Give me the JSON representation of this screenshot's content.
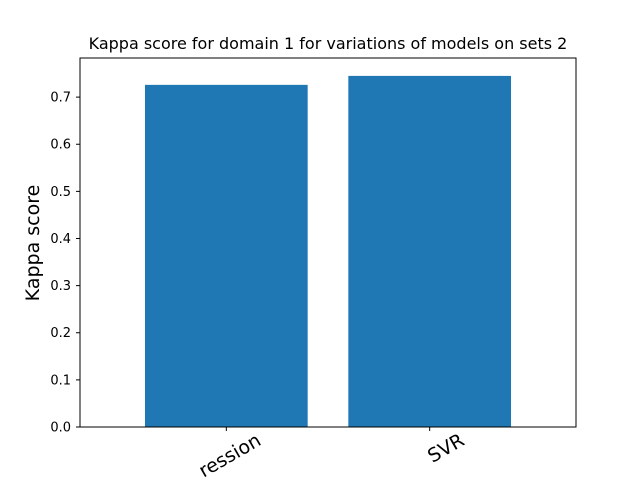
{
  "chart_data": {
    "type": "bar",
    "title": "Kappa score for domain 1 for variations of models on sets 2",
    "xlabel": "",
    "ylabel": "Kappa score",
    "categories": [
      "ression",
      "SVR"
    ],
    "values": [
      0.726,
      0.745
    ],
    "ylim": [
      0,
      0.783
    ],
    "yticks": [
      "0.0",
      "0.1",
      "0.2",
      "0.3",
      "0.4",
      "0.5",
      "0.6",
      "0.7"
    ],
    "bar_color": "#1f77b4",
    "grid": false,
    "legend": "none"
  }
}
